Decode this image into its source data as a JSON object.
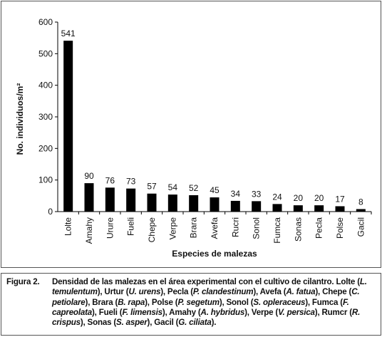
{
  "chart_data": {
    "type": "bar",
    "y_label": "No. individuos/m²",
    "x_label": "Especies de malezas",
    "categories": [
      "Lolte",
      "Amahy",
      "Urure",
      "Fueli",
      "Chepe",
      "Verpe",
      "Brara",
      "Avefa",
      "Rucri",
      "Sonol",
      "Fumca",
      "Sonas",
      "Pecla",
      "Polse",
      "Gacil"
    ],
    "values": [
      541,
      90,
      76,
      73,
      57,
      54,
      52,
      45,
      34,
      33,
      24,
      20,
      20,
      17,
      8
    ],
    "color": "#000000",
    "ylim": [
      0,
      600
    ],
    "yticks": [
      0,
      100,
      200,
      300,
      400,
      500,
      600
    ],
    "grid": false
  },
  "caption": {
    "label": "Figura 2.",
    "runs": [
      "Densidad de las malezas en el área experimental con el cultivo de cilantro. Lolte (",
      "L. temulentum",
      "), Urtur (",
      "U. urens",
      "), Pecla (",
      "P. clandestinum",
      "), Avefa (",
      "A. fatua",
      "), Chepe (",
      "C. petiolare",
      "), Brara (",
      "B. rapa",
      "), Polse (",
      "P. segetum",
      "), Sonol (",
      "S. opleraceus",
      "), Fumca (",
      "F. capreolata",
      "), Fueli (",
      "F. limensis",
      "), Amahy (",
      "A. hybridus",
      "), Verpe (",
      "V. persica",
      "), Rumcr (",
      "R. crispus",
      "), Sonas (",
      "S. asper",
      "), Gacil (",
      "G. ciliata",
      ")."
    ]
  }
}
